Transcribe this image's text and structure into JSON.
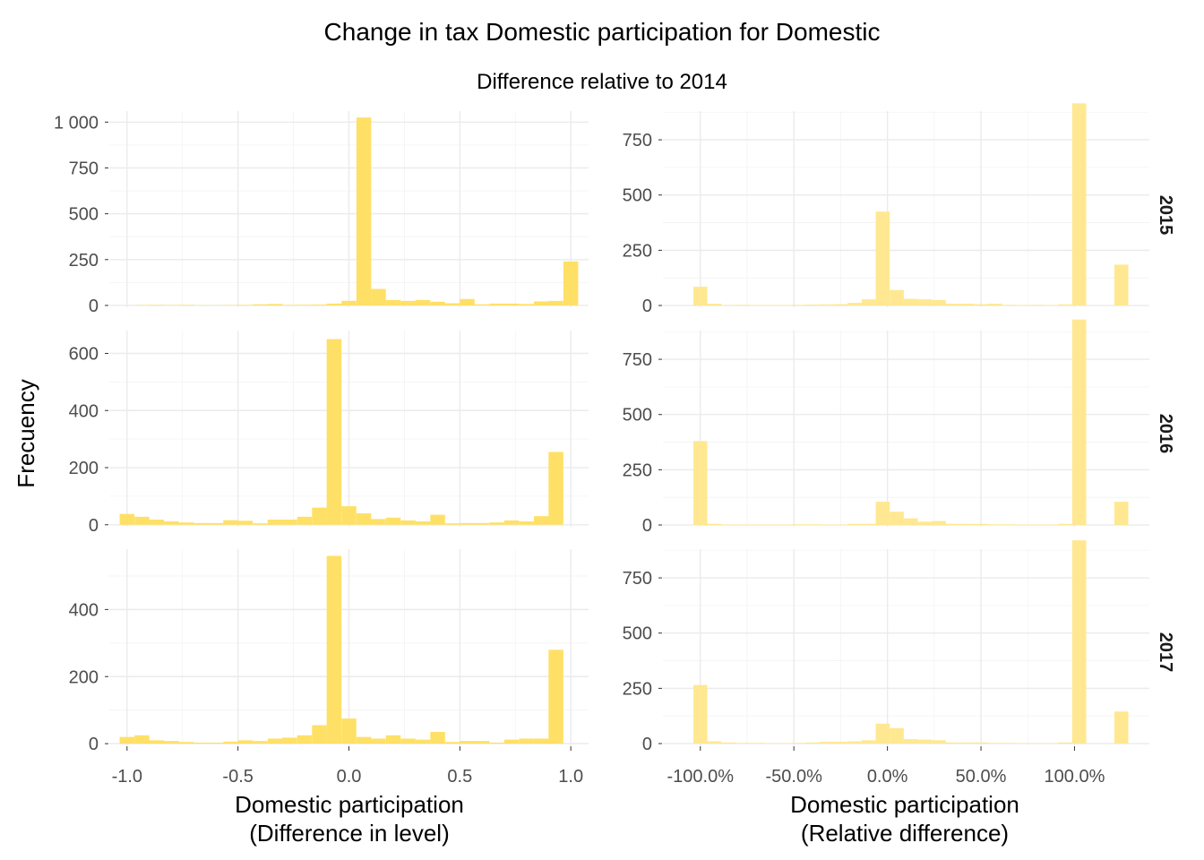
{
  "title": "Change in tax Domestic participation for Domestic",
  "subtitle": "Difference relative to 2014",
  "y_axis_title": "Frecuency",
  "x_titles": [
    [
      "Domestic participation",
      "(Difference in level)"
    ],
    [
      "Domestic participation",
      "(Relative difference)"
    ]
  ],
  "rows": [
    "2015",
    "2016",
    "2017"
  ],
  "colors": {
    "bar": "#ffe066",
    "bar_right": "#ffe891"
  },
  "chart_data": [
    {
      "type": "bar",
      "panel": "level",
      "facet": "2015",
      "x_tick_labels": [
        "-1.0",
        "-0.5",
        "0.0",
        "0.5",
        "1.0"
      ],
      "x_ticks": [
        -1,
        -0.5,
        0,
        0.5,
        1
      ],
      "y_tick_labels": [
        "0",
        "250",
        "500",
        "750",
        "1 000"
      ],
      "y_ticks": [
        0,
        250,
        500,
        750,
        1000
      ],
      "xlim": [
        -1.08,
        1.08
      ],
      "ylim": [
        -10,
        1060
      ],
      "bin_width": 0.0667,
      "x": [
        -1.0,
        -0.933,
        -0.867,
        -0.8,
        -0.733,
        -0.667,
        -0.6,
        -0.533,
        -0.467,
        -0.4,
        -0.333,
        -0.267,
        -0.2,
        -0.133,
        -0.067,
        0.0,
        0.067,
        0.133,
        0.2,
        0.267,
        0.333,
        0.4,
        0.467,
        0.533,
        0.6,
        0.667,
        0.733,
        0.8,
        0.867,
        0.933,
        1.0
      ],
      "values": [
        0,
        2,
        3,
        2,
        3,
        1,
        1,
        2,
        3,
        6,
        8,
        3,
        4,
        5,
        10,
        25,
        1025,
        90,
        30,
        25,
        30,
        20,
        12,
        35,
        6,
        10,
        10,
        8,
        22,
        25,
        240
      ]
    },
    {
      "type": "bar",
      "panel": "relative",
      "facet": "2015",
      "x_tick_labels": [
        "-100.0%",
        "-50.0%",
        "0.0%",
        "50.0%",
        "100.0%"
      ],
      "x_ticks": [
        -1,
        -0.5,
        0,
        0.5,
        1
      ],
      "y_tick_labels": [
        "0",
        "250",
        "500",
        "750"
      ],
      "y_ticks": [
        0,
        250,
        500,
        750
      ],
      "xlim": [
        -1.2,
        1.4
      ],
      "ylim": [
        -8,
        880
      ],
      "bin_width": 0.075,
      "x": [
        -1.0,
        -0.925,
        -0.85,
        -0.775,
        -0.7,
        -0.625,
        -0.55,
        -0.475,
        -0.4,
        -0.325,
        -0.25,
        -0.175,
        -0.1,
        -0.025,
        0.05,
        0.125,
        0.2,
        0.275,
        0.35,
        0.425,
        0.5,
        0.575,
        0.65,
        0.725,
        0.8,
        0.875,
        0.95,
        1.025,
        1.1,
        1.175,
        1.25
      ],
      "values": [
        85,
        8,
        2,
        3,
        2,
        2,
        2,
        3,
        4,
        5,
        6,
        12,
        28,
        425,
        70,
        30,
        28,
        25,
        8,
        8,
        6,
        8,
        3,
        2,
        3,
        2,
        5,
        915,
        0,
        0,
        185
      ]
    },
    {
      "type": "bar",
      "panel": "level",
      "facet": "2016",
      "x_tick_labels": [
        "-1.0",
        "-0.5",
        "0.0",
        "0.5",
        "1.0"
      ],
      "x_ticks": [
        -1,
        -0.5,
        0,
        0.5,
        1
      ],
      "y_tick_labels": [
        "0",
        "200",
        "400",
        "600"
      ],
      "y_ticks": [
        0,
        200,
        400,
        600
      ],
      "xlim": [
        -1.08,
        1.08
      ],
      "ylim": [
        -7,
        680
      ],
      "bin_width": 0.0667,
      "x": [
        -1.0,
        -0.933,
        -0.867,
        -0.8,
        -0.733,
        -0.667,
        -0.6,
        -0.533,
        -0.467,
        -0.4,
        -0.333,
        -0.267,
        -0.2,
        -0.133,
        -0.067,
        0.0,
        0.067,
        0.133,
        0.2,
        0.267,
        0.333,
        0.4,
        0.467,
        0.533,
        0.6,
        0.667,
        0.733,
        0.8,
        0.867,
        0.933,
        1.0
      ],
      "values": [
        38,
        28,
        18,
        12,
        8,
        6,
        6,
        16,
        14,
        5,
        18,
        18,
        28,
        60,
        650,
        65,
        40,
        20,
        25,
        15,
        12,
        35,
        5,
        6,
        6,
        8,
        15,
        12,
        30,
        255,
        0
      ]
    },
    {
      "type": "bar",
      "panel": "relative",
      "facet": "2016",
      "x_tick_labels": [
        "-100.0%",
        "-50.0%",
        "0.0%",
        "50.0%",
        "100.0%"
      ],
      "x_ticks": [
        -1,
        -0.5,
        0,
        0.5,
        1
      ],
      "y_tick_labels": [
        "0",
        "250",
        "500",
        "750"
      ],
      "y_ticks": [
        0,
        250,
        500,
        750
      ],
      "xlim": [
        -1.2,
        1.4
      ],
      "ylim": [
        -8,
        880
      ],
      "bin_width": 0.075,
      "x": [
        -1.0,
        -0.925,
        -0.85,
        -0.775,
        -0.7,
        -0.625,
        -0.55,
        -0.475,
        -0.4,
        -0.325,
        -0.25,
        -0.175,
        -0.1,
        -0.025,
        0.05,
        0.125,
        0.2,
        0.275,
        0.35,
        0.425,
        0.5,
        0.575,
        0.65,
        0.725,
        0.8,
        0.875,
        0.95,
        1.025,
        1.1,
        1.175,
        1.25
      ],
      "values": [
        380,
        5,
        2,
        2,
        2,
        2,
        2,
        3,
        3,
        2,
        2,
        5,
        5,
        105,
        60,
        30,
        15,
        18,
        5,
        5,
        5,
        3,
        3,
        2,
        2,
        2,
        5,
        930,
        0,
        0,
        105
      ]
    },
    {
      "type": "bar",
      "panel": "level",
      "facet": "2017",
      "x_tick_labels": [
        "-1.0",
        "-0.5",
        "0.0",
        "0.5",
        "1.0"
      ],
      "x_ticks": [
        -1,
        -0.5,
        0,
        0.5,
        1
      ],
      "y_tick_labels": [
        "0",
        "200",
        "400"
      ],
      "y_ticks": [
        0,
        200,
        400
      ],
      "xlim": [
        -1.08,
        1.08
      ],
      "ylim": [
        -5,
        580
      ],
      "bin_width": 0.0667,
      "x": [
        -1.0,
        -0.933,
        -0.867,
        -0.8,
        -0.733,
        -0.667,
        -0.6,
        -0.533,
        -0.467,
        -0.4,
        -0.333,
        -0.267,
        -0.2,
        -0.133,
        -0.067,
        0.0,
        0.067,
        0.133,
        0.2,
        0.267,
        0.333,
        0.4,
        0.467,
        0.533,
        0.6,
        0.667,
        0.733,
        0.8,
        0.867,
        0.933,
        1.0
      ],
      "values": [
        20,
        25,
        10,
        8,
        5,
        3,
        3,
        6,
        10,
        8,
        15,
        18,
        25,
        55,
        560,
        75,
        20,
        15,
        25,
        15,
        12,
        35,
        5,
        8,
        8,
        3,
        12,
        15,
        15,
        280,
        0
      ]
    },
    {
      "type": "bar",
      "panel": "relative",
      "facet": "2017",
      "x_tick_labels": [
        "-100.0%",
        "-50.0%",
        "0.0%",
        "50.0%",
        "100.0%"
      ],
      "x_ticks": [
        -1,
        -0.5,
        0,
        0.5,
        1
      ],
      "y_tick_labels": [
        "0",
        "250",
        "500",
        "750"
      ],
      "y_ticks": [
        0,
        250,
        500,
        750
      ],
      "xlim": [
        -1.2,
        1.4
      ],
      "ylim": [
        -8,
        880
      ],
      "bin_width": 0.075,
      "x": [
        -1.0,
        -0.925,
        -0.85,
        -0.775,
        -0.7,
        -0.625,
        -0.55,
        -0.475,
        -0.4,
        -0.325,
        -0.25,
        -0.175,
        -0.1,
        -0.025,
        0.05,
        0.125,
        0.2,
        0.275,
        0.35,
        0.425,
        0.5,
        0.575,
        0.65,
        0.725,
        0.8,
        0.875,
        0.95,
        1.025,
        1.1,
        1.175,
        1.25
      ],
      "values": [
        265,
        10,
        5,
        3,
        3,
        2,
        2,
        3,
        5,
        8,
        8,
        10,
        15,
        90,
        70,
        20,
        18,
        15,
        5,
        5,
        5,
        3,
        3,
        2,
        2,
        2,
        5,
        920,
        0,
        0,
        145
      ]
    }
  ]
}
